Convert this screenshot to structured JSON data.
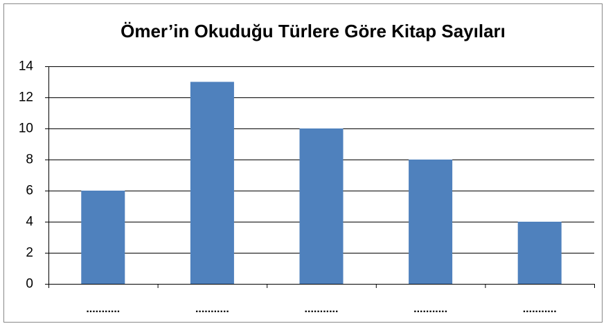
{
  "chart_data": {
    "type": "bar",
    "title": "Ömer’in Okuduğu Türlere Göre Kitap Sayıları",
    "categories": [
      "...........",
      "...........",
      "...........",
      "...........",
      "..........."
    ],
    "values": [
      6,
      13,
      10,
      8,
      4
    ],
    "color": "#4f81bd",
    "ylim": [
      0,
      14
    ],
    "yticks": [
      0,
      2,
      4,
      6,
      8,
      10,
      12,
      14
    ],
    "grid": true
  }
}
